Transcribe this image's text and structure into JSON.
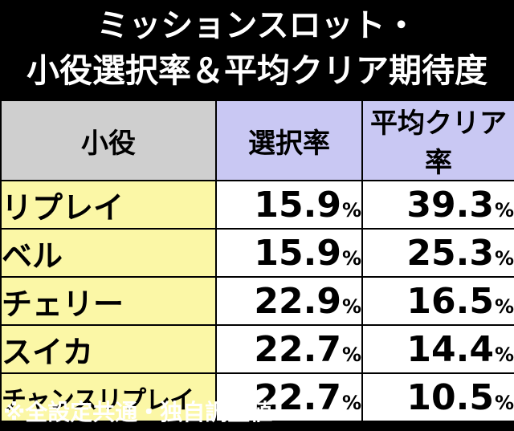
{
  "title": {
    "line1": "ミッションスロット・",
    "line2": "小役選択率＆平均クリア期待度"
  },
  "table": {
    "headers": [
      "小役",
      "選択率",
      "平均クリア率"
    ],
    "unit": "%",
    "rows": [
      {
        "role": "リプレイ",
        "rate": "15.9",
        "clear": "39.3"
      },
      {
        "role": "ベル",
        "rate": "15.9",
        "clear": "25.3"
      },
      {
        "role": "チェリー",
        "rate": "22.9",
        "clear": "16.5"
      },
      {
        "role": "スイカ",
        "rate": "22.7",
        "clear": "14.4"
      },
      {
        "role": "チャンスリプレイ",
        "rate": "22.7",
        "clear": "10.5"
      }
    ]
  },
  "footnote": "※全設定共通・独自調査値"
}
